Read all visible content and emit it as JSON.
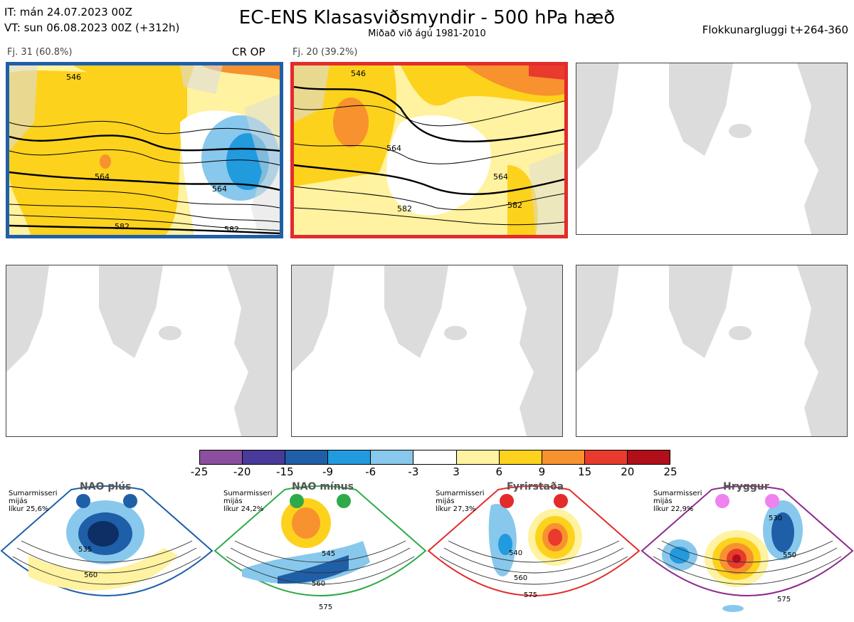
{
  "header": {
    "it_line": "IT: mán 24.07.2023 00Z",
    "vt_line": "VT: sun 06.08.2023 00Z  (+312h)",
    "title": "EC-ENS Klasasviðsmyndir - 500 hPa hæð",
    "subtitle": "Miðað við ágú 1981-2010",
    "window": "Flokkunargluggi t+264-360"
  },
  "clusters": [
    {
      "label": "Fj. 31 (60.8%)",
      "tag": "CR OP",
      "border_color": "#1f5fa8",
      "contour_labels": [
        "564",
        "564",
        "582",
        "582",
        "546"
      ]
    },
    {
      "label": "Fj. 20 (39.2%)",
      "tag": "",
      "border_color": "#e32b2b",
      "contour_labels": [
        "564",
        "564",
        "582",
        "582",
        "546"
      ]
    }
  ],
  "empty_panels": 4,
  "colorbar": {
    "colors": [
      "#8c4f9f",
      "#4a3a99",
      "#1f5fa8",
      "#229ade",
      "#88c8ec",
      "#ffffff",
      "#fff2a0",
      "#fdd21d",
      "#f7922e",
      "#e93a2e",
      "#b10f19"
    ],
    "ticks": [
      "-25",
      "-20",
      "-15",
      "-9",
      "-6",
      "-3",
      "3",
      "6",
      "9",
      "15",
      "20",
      "25"
    ]
  },
  "regimes": [
    {
      "title": "NAO plús",
      "info": [
        "Sumarmisseri",
        "mijás",
        "líkur 25,6%"
      ],
      "dot_color": "#1f5fa8",
      "border_color": "#1f5fa8",
      "labels": [
        "535",
        "560"
      ]
    },
    {
      "title": "NAO mínus",
      "info": [
        "Sumarmisseri",
        "mijás",
        "líkur 24,2%"
      ],
      "dot_color": "#2eaa4a",
      "border_color": "#2eaa4a",
      "labels": [
        "545",
        "560",
        "575"
      ]
    },
    {
      "title": "Fyrirstaða",
      "info": [
        "Sumarmisseri",
        "mijás",
        "líkur 27,3%"
      ],
      "dot_color": "#e32b2b",
      "border_color": "#e32b2b",
      "labels": [
        "540",
        "560",
        "575"
      ]
    },
    {
      "title": "Hryggur",
      "info": [
        "Sumarmisseri",
        "mijás",
        "líkur 22,9%"
      ],
      "dot_color": "#ee82ee",
      "border_color": "#8e2a8e",
      "labels": [
        "530",
        "550",
        "575"
      ]
    }
  ]
}
